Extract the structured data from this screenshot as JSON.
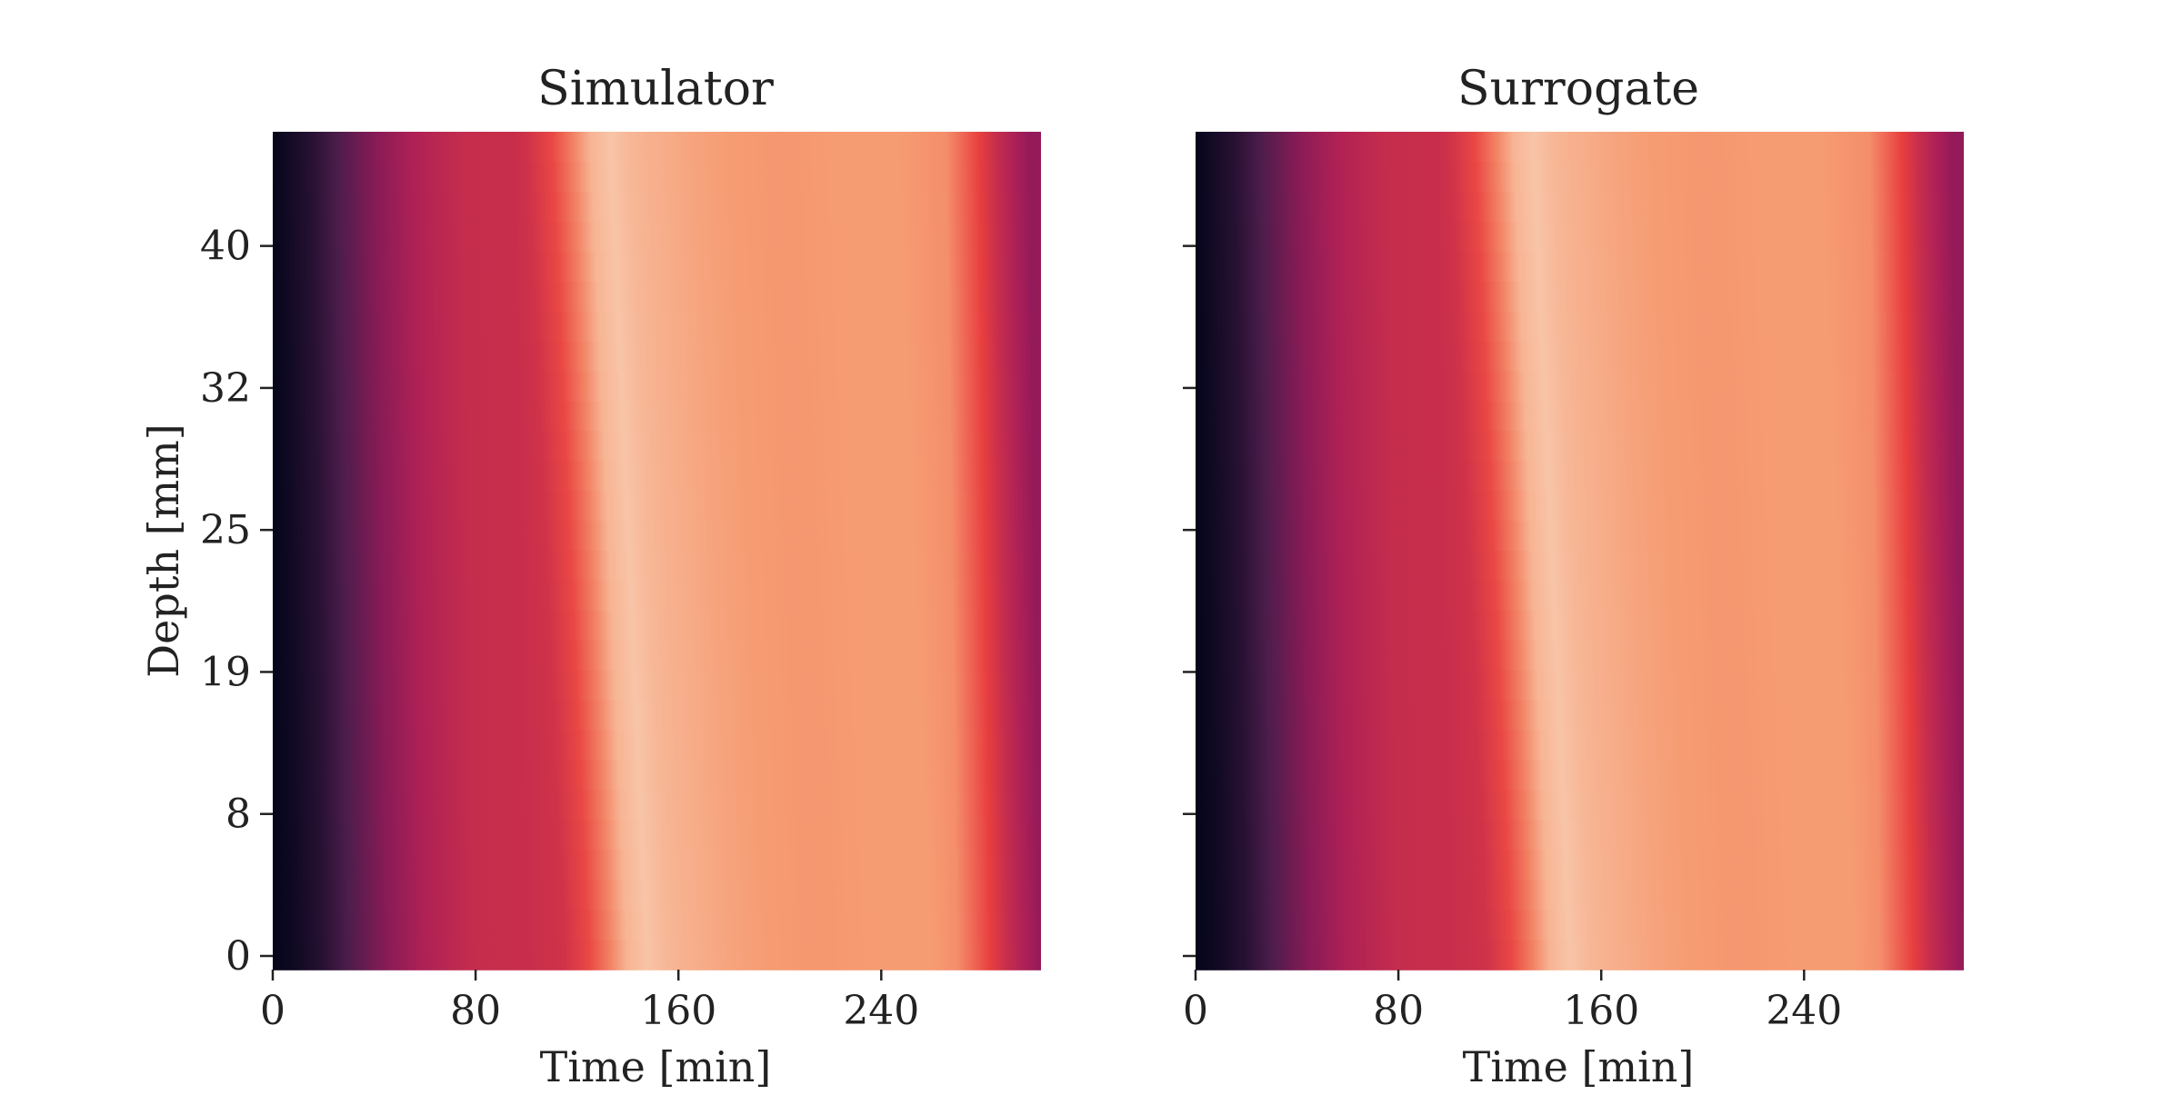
{
  "chart_data": [
    {
      "type": "heatmap",
      "title": "Simulator",
      "xlabel": "Time [min]",
      "ylabel": "Depth [mm]",
      "x_ticks": [
        0,
        80,
        160,
        240
      ],
      "x_range": [
        0,
        303
      ],
      "y_ticks": [
        0,
        8,
        19,
        25,
        32,
        40
      ],
      "y_tick_labels_shown": true,
      "colormap": "rocket",
      "colormap_stops": [
        "#03051a",
        "#4c1d4b",
        "#a11a5b",
        "#e83f3f",
        "#f69c73",
        "#faebdd"
      ],
      "intensity_profile_by_time": {
        "time": [
          0,
          10,
          20,
          30,
          45,
          60,
          80,
          100,
          115,
          125,
          133,
          140,
          148,
          155,
          163,
          170,
          180,
          195,
          215,
          240,
          260,
          270,
          277,
          283,
          290,
          297,
          303
        ],
        "intensity_at_depth_0": [
          0.0,
          0.04,
          0.1,
          0.2,
          0.34,
          0.44,
          0.5,
          0.51,
          0.53,
          0.62,
          0.74,
          0.86,
          0.9,
          0.87,
          0.85,
          0.84,
          0.82,
          0.8,
          0.79,
          0.8,
          0.8,
          0.77,
          0.68,
          0.6,
          0.5,
          0.43,
          0.37
        ],
        "shift_at_top_depth_min": 15
      }
    },
    {
      "type": "heatmap",
      "title": "Surrogate",
      "xlabel": "Time [min]",
      "ylabel": "",
      "x_ticks": [
        0,
        80,
        160,
        240
      ],
      "x_range": [
        0,
        303
      ],
      "y_ticks": [
        0,
        8,
        19,
        25,
        32,
        40
      ],
      "y_tick_labels_shown": false,
      "colormap": "rocket",
      "colormap_stops": [
        "#03051a",
        "#4c1d4b",
        "#a11a5b",
        "#e83f3f",
        "#f69c73",
        "#faebdd"
      ],
      "intensity_profile_by_time": {
        "time": [
          0,
          10,
          20,
          30,
          45,
          60,
          80,
          100,
          115,
          125,
          133,
          140,
          148,
          155,
          163,
          170,
          180,
          195,
          215,
          240,
          260,
          270,
          277,
          283,
          290,
          297,
          303
        ],
        "intensity_at_depth_0": [
          0.0,
          0.04,
          0.1,
          0.2,
          0.34,
          0.44,
          0.5,
          0.51,
          0.53,
          0.62,
          0.74,
          0.86,
          0.9,
          0.87,
          0.85,
          0.84,
          0.82,
          0.8,
          0.79,
          0.8,
          0.8,
          0.77,
          0.68,
          0.6,
          0.5,
          0.43,
          0.37
        ],
        "shift_at_top_depth_min": 15
      }
    }
  ]
}
